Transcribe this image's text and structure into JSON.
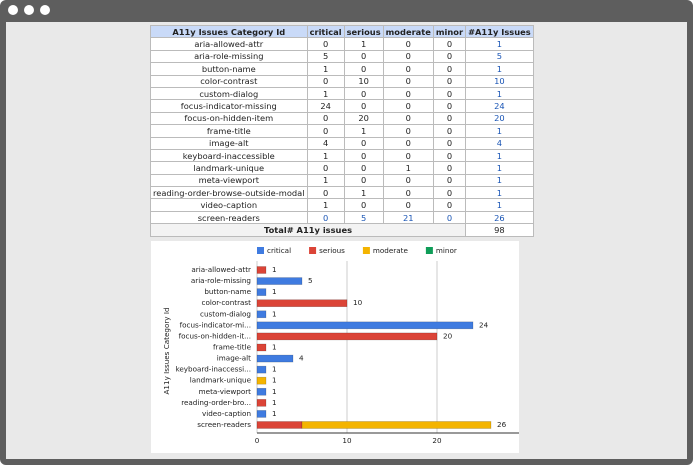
{
  "table": {
    "columns": [
      "A11y Issues Category Id",
      "critical",
      "serious",
      "moderate",
      "minor",
      "#A11y Issues"
    ],
    "rows": [
      [
        "aria-allowed-attr",
        0,
        1,
        0,
        0,
        1
      ],
      [
        "aria-role-missing",
        5,
        0,
        0,
        0,
        5
      ],
      [
        "button-name",
        1,
        0,
        0,
        0,
        1
      ],
      [
        "color-contrast",
        0,
        10,
        0,
        0,
        10
      ],
      [
        "custom-dialog",
        1,
        0,
        0,
        0,
        1
      ],
      [
        "focus-indicator-missing",
        24,
        0,
        0,
        0,
        24
      ],
      [
        "focus-on-hidden-item",
        0,
        20,
        0,
        0,
        20
      ],
      [
        "frame-title",
        0,
        1,
        0,
        0,
        1
      ],
      [
        "image-alt",
        4,
        0,
        0,
        0,
        4
      ],
      [
        "keyboard-inaccessible",
        1,
        0,
        0,
        0,
        1
      ],
      [
        "landmark-unique",
        0,
        0,
        1,
        0,
        1
      ],
      [
        "meta-viewport",
        1,
        0,
        0,
        0,
        1
      ],
      [
        "reading-order-browse-outside-modal",
        0,
        1,
        0,
        0,
        1
      ],
      [
        "video-caption",
        1,
        0,
        0,
        0,
        1
      ],
      [
        "screen-readers",
        0,
        5,
        21,
        0,
        26
      ]
    ],
    "total_label": "Total# A11y issues",
    "total": 98
  },
  "chart_data": {
    "type": "stacked-barh",
    "y_label": "A11y Issues Category Id",
    "categories": [
      "aria-allowed-attr",
      "aria-role-missing",
      "button-name",
      "color-contrast",
      "custom-dialog",
      "focus-indicator-mi...",
      "focus-on-hidden-it...",
      "frame-title",
      "image-alt",
      "keyboard-inaccessi...",
      "landmark-unique",
      "meta-viewport",
      "reading-order-bro...",
      "video-caption",
      "screen-readers"
    ],
    "series": [
      {
        "name": "critical",
        "color": "#3f7be0",
        "values": [
          0,
          5,
          1,
          0,
          1,
          24,
          0,
          0,
          4,
          1,
          0,
          1,
          0,
          1,
          0
        ]
      },
      {
        "name": "serious",
        "color": "#db4437",
        "values": [
          1,
          0,
          0,
          10,
          0,
          0,
          20,
          1,
          0,
          0,
          0,
          0,
          1,
          0,
          5
        ]
      },
      {
        "name": "moderate",
        "color": "#f4b400",
        "values": [
          0,
          0,
          0,
          0,
          0,
          0,
          0,
          0,
          0,
          0,
          1,
          0,
          0,
          0,
          21
        ]
      },
      {
        "name": "minor",
        "color": "#0f9d58",
        "values": [
          0,
          0,
          0,
          0,
          0,
          0,
          0,
          0,
          0,
          0,
          0,
          0,
          0,
          0,
          0
        ]
      }
    ],
    "totals": [
      1,
      5,
      1,
      10,
      1,
      24,
      20,
      1,
      4,
      1,
      1,
      1,
      1,
      1,
      26
    ],
    "xlim": [
      0,
      30
    ],
    "xticks": [
      0,
      10,
      20
    ],
    "grid": true
  }
}
